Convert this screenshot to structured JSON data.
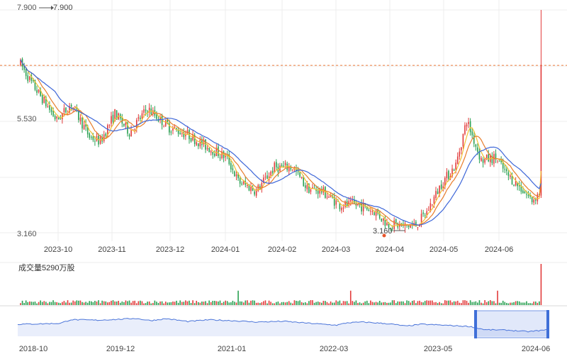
{
  "chart_data": {
    "type": "candlestick",
    "y_axis": {
      "ylim": [
        3.16,
        7.9
      ],
      "labels": [
        "7.900",
        "5.530",
        "3.160"
      ]
    },
    "max_annotation": "7.900",
    "min_annotation": "3.160",
    "reference_line": 6.72,
    "x_tick_labels": [
      "2023-10",
      "2023-11",
      "2023-12",
      "2024-01",
      "2024-02",
      "2024-03",
      "2024-04",
      "2024-05",
      "2024-06"
    ],
    "volume_label": "成交量5290万股",
    "overview_tick_labels": [
      "2018-10",
      "2019-12",
      "2021-01",
      "2022-03",
      "2023-05",
      "2024-06"
    ],
    "ma_colors": [
      "#f2c233",
      "#e87d2b",
      "#3d66d8"
    ],
    "up_color": "#e23b3b",
    "down_color": "#2aa052",
    "line_color": "#4a74d9",
    "anchors": [
      [
        0,
        6.75
      ],
      [
        6,
        6.35
      ],
      [
        14,
        5.9
      ],
      [
        20,
        5.55
      ],
      [
        28,
        5.9
      ],
      [
        38,
        5.2
      ],
      [
        44,
        5.1
      ],
      [
        52,
        5.7
      ],
      [
        60,
        5.3
      ],
      [
        70,
        5.8
      ],
      [
        76,
        5.6
      ],
      [
        82,
        5.4
      ],
      [
        92,
        5.25
      ],
      [
        102,
        5.0
      ],
      [
        114,
        4.75
      ],
      [
        120,
        4.25
      ],
      [
        130,
        4.05
      ],
      [
        140,
        4.55
      ],
      [
        150,
        4.55
      ],
      [
        158,
        4.1
      ],
      [
        166,
        4.05
      ],
      [
        176,
        3.75
      ],
      [
        186,
        3.75
      ],
      [
        196,
        3.6
      ],
      [
        202,
        3.35
      ],
      [
        212,
        3.3
      ],
      [
        218,
        3.32
      ],
      [
        224,
        3.6
      ],
      [
        232,
        4.2
      ],
      [
        240,
        4.6
      ],
      [
        246,
        5.55
      ],
      [
        254,
        4.7
      ],
      [
        262,
        4.75
      ],
      [
        268,
        4.4
      ],
      [
        276,
        4.1
      ],
      [
        282,
        3.85
      ],
      [
        286,
        4.0
      ],
      [
        287,
        6.72
      ]
    ],
    "overview_anchors": [
      [
        0,
        0.5
      ],
      [
        0.04,
        0.52
      ],
      [
        0.08,
        0.55
      ],
      [
        0.1,
        0.75
      ],
      [
        0.15,
        0.72
      ],
      [
        0.2,
        0.78
      ],
      [
        0.22,
        0.82
      ],
      [
        0.25,
        0.7
      ],
      [
        0.28,
        0.8
      ],
      [
        0.32,
        0.65
      ],
      [
        0.36,
        0.74
      ],
      [
        0.4,
        0.7
      ],
      [
        0.45,
        0.62
      ],
      [
        0.5,
        0.66
      ],
      [
        0.55,
        0.55
      ],
      [
        0.6,
        0.45
      ],
      [
        0.62,
        0.58
      ],
      [
        0.65,
        0.62
      ],
      [
        0.7,
        0.52
      ],
      [
        0.73,
        0.4
      ],
      [
        0.76,
        0.5
      ],
      [
        0.8,
        0.45
      ],
      [
        0.85,
        0.38
      ],
      [
        0.88,
        0.2
      ],
      [
        0.92,
        0.18
      ],
      [
        0.96,
        0.1
      ],
      [
        1.0,
        0.2
      ]
    ]
  }
}
